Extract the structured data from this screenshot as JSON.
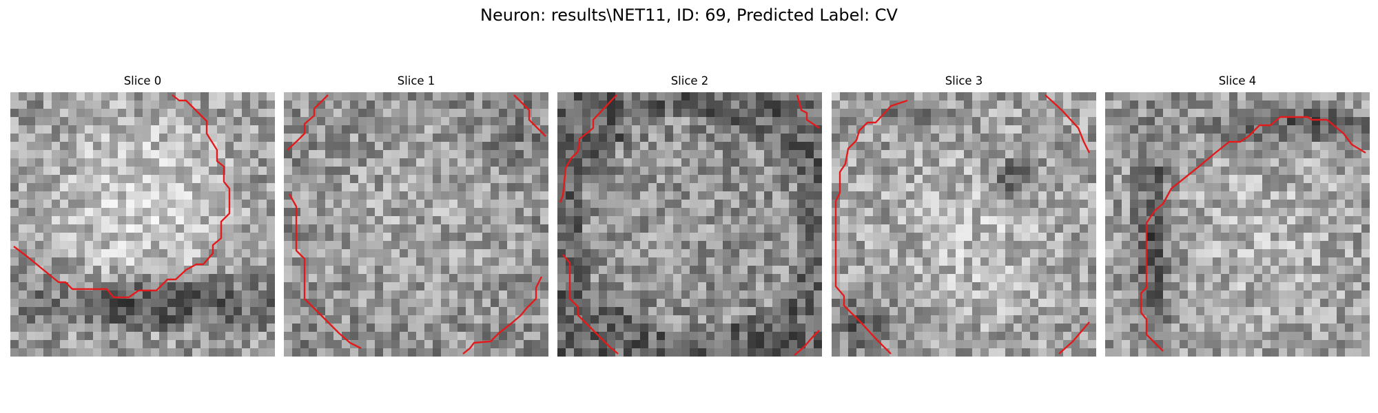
{
  "figure": {
    "title": "Neuron: results\\NET11, ID: 69, Predicted Label: CV",
    "contour_color": "#e31a1c",
    "colormap": "gray",
    "panels": [
      {
        "title": "Slice 0"
      },
      {
        "title": "Slice 1"
      },
      {
        "title": "Slice 2"
      },
      {
        "title": "Slice 3"
      },
      {
        "title": "Slice 4"
      }
    ]
  }
}
